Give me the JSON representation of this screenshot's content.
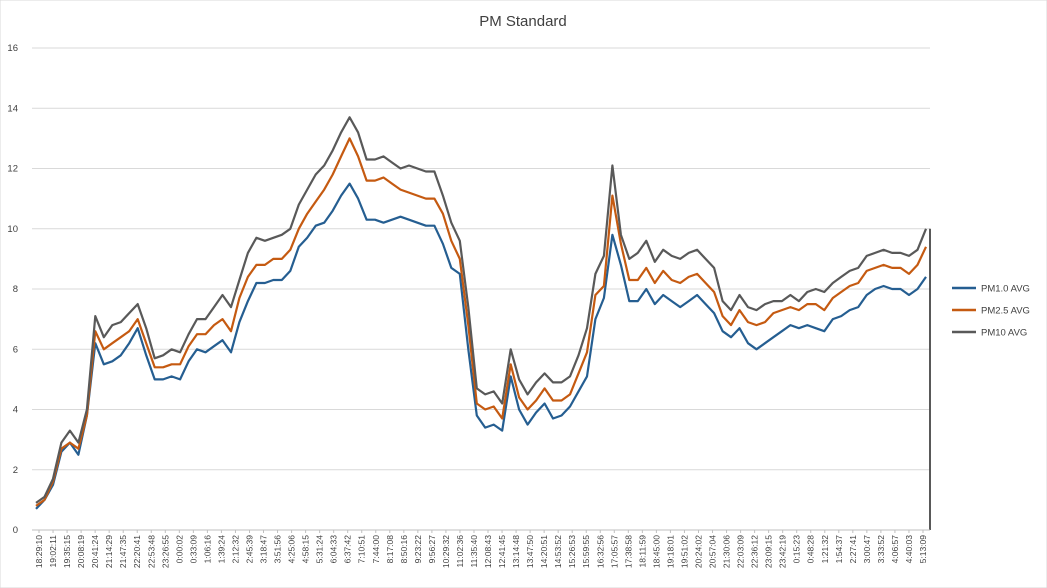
{
  "chart_data": {
    "type": "line",
    "title": "PM Standard",
    "xlabel": "",
    "ylabel": "",
    "ylim": [
      0,
      16
    ],
    "y_ticks": [
      0,
      2,
      4,
      6,
      8,
      10,
      12,
      14,
      16
    ],
    "grid": true,
    "legend_position": "right",
    "x_tick_labels": [
      "18:29:10",
      "19:02:11",
      "19:35:15",
      "20:08:19",
      "20:41:24",
      "21:14:29",
      "21:47:35",
      "22:20:41",
      "22:53:48",
      "23:26:55",
      "0:00:02",
      "0:33:09",
      "1:06:16",
      "1:39:24",
      "2:12:32",
      "2:45:39",
      "3:18:47",
      "3:51:56",
      "4:25:06",
      "4:58:15",
      "5:31:24",
      "6:04:33",
      "6:37:42",
      "7:10:51",
      "7:44:00",
      "8:17:08",
      "8:50:16",
      "9:23:22",
      "9:56:27",
      "10:29:32",
      "11:02:36",
      "11:35:40",
      "12:08:43",
      "12:41:45",
      "13:14:48",
      "13:47:50",
      "14:20:51",
      "14:53:52",
      "15:26:53",
      "15:59:55",
      "16:32:56",
      "17:05:57",
      "17:38:58",
      "18:11:59",
      "18:45:00",
      "19:18:01",
      "19:51:02",
      "20:24:02",
      "20:57:04",
      "21:30:06",
      "22:03:09",
      "22:36:12",
      "23:09:15",
      "23:42:19",
      "0:15:23",
      "0:48:28",
      "1:21:32",
      "1:54:37",
      "2:27:41",
      "3:00:47",
      "3:33:52",
      "4:06:57",
      "4:40:03",
      "5:13:09"
    ],
    "series": [
      {
        "name": "PM1.0 AVG",
        "color": "#255e91",
        "values": [
          0.7,
          1.0,
          1.5,
          2.6,
          2.9,
          2.5,
          3.8,
          6.2,
          5.5,
          5.6,
          5.8,
          6.2,
          6.7,
          5.8,
          5.0,
          5.0,
          5.1,
          5.0,
          5.6,
          6.0,
          5.9,
          6.1,
          6.3,
          5.9,
          6.9,
          7.6,
          8.2,
          8.2,
          8.3,
          8.3,
          8.6,
          9.4,
          9.7,
          10.1,
          10.2,
          10.6,
          11.1,
          11.5,
          11.0,
          10.3,
          10.3,
          10.2,
          10.3,
          10.4,
          10.3,
          10.2,
          10.1,
          10.1,
          9.5,
          8.7,
          8.5,
          6.0,
          3.8,
          3.4,
          3.5,
          3.3,
          5.1,
          4.0,
          3.5,
          3.9,
          4.2,
          3.7,
          3.8,
          4.1,
          4.6,
          5.1,
          7.0,
          7.7,
          9.8,
          8.8,
          7.6,
          7.6,
          8.0,
          7.5,
          7.8,
          7.6,
          7.4,
          7.6,
          7.8,
          7.5,
          7.2,
          6.6,
          6.4,
          6.7,
          6.2,
          6.0,
          6.2,
          6.4,
          6.6,
          6.8,
          6.7,
          6.8,
          6.7,
          6.6,
          7.0,
          7.1,
          7.3,
          7.4,
          7.8,
          8.0,
          8.1,
          8.0,
          8.0,
          7.8,
          8.0,
          8.4
        ]
      },
      {
        "name": "PM2.5 AVG",
        "color": "#c55a11",
        "values": [
          0.8,
          1.0,
          1.6,
          2.7,
          2.9,
          2.7,
          3.8,
          6.6,
          6.0,
          6.2,
          6.4,
          6.6,
          7.0,
          6.2,
          5.4,
          5.4,
          5.5,
          5.5,
          6.1,
          6.5,
          6.5,
          6.8,
          7.0,
          6.6,
          7.7,
          8.4,
          8.8,
          8.8,
          9.0,
          9.0,
          9.3,
          10.0,
          10.5,
          10.9,
          11.3,
          11.8,
          12.4,
          13.0,
          12.4,
          11.6,
          11.6,
          11.7,
          11.5,
          11.3,
          11.2,
          11.1,
          11.0,
          11.0,
          10.5,
          9.6,
          9.0,
          6.8,
          4.2,
          4.0,
          4.1,
          3.7,
          5.5,
          4.4,
          4.0,
          4.3,
          4.7,
          4.3,
          4.3,
          4.5,
          5.2,
          5.9,
          7.8,
          8.1,
          11.1,
          9.5,
          8.3,
          8.3,
          8.7,
          8.2,
          8.6,
          8.3,
          8.2,
          8.4,
          8.5,
          8.2,
          7.9,
          7.1,
          6.8,
          7.3,
          6.9,
          6.8,
          6.9,
          7.2,
          7.3,
          7.4,
          7.3,
          7.5,
          7.5,
          7.3,
          7.7,
          7.9,
          8.1,
          8.2,
          8.6,
          8.7,
          8.8,
          8.7,
          8.7,
          8.5,
          8.8,
          9.4
        ]
      },
      {
        "name": "PM10 AVG",
        "color": "#595959",
        "values": [
          0.9,
          1.1,
          1.7,
          2.9,
          3.3,
          2.9,
          4.0,
          7.1,
          6.4,
          6.8,
          6.9,
          7.2,
          7.5,
          6.7,
          5.7,
          5.8,
          6.0,
          5.9,
          6.5,
          7.0,
          7.0,
          7.4,
          7.8,
          7.4,
          8.3,
          9.2,
          9.7,
          9.6,
          9.7,
          9.8,
          10.0,
          10.8,
          11.3,
          11.8,
          12.1,
          12.6,
          13.2,
          13.7,
          13.2,
          12.3,
          12.3,
          12.4,
          12.2,
          12.0,
          12.1,
          12.0,
          11.9,
          11.9,
          11.1,
          10.2,
          9.6,
          7.4,
          4.7,
          4.5,
          4.6,
          4.2,
          6.0,
          5.0,
          4.5,
          4.9,
          5.2,
          4.9,
          4.9,
          5.1,
          5.8,
          6.7,
          8.5,
          9.1,
          12.1,
          9.8,
          9.0,
          9.2,
          9.6,
          8.9,
          9.3,
          9.1,
          9.0,
          9.2,
          9.3,
          9.0,
          8.7,
          7.6,
          7.3,
          7.8,
          7.4,
          7.3,
          7.5,
          7.6,
          7.6,
          7.8,
          7.6,
          7.9,
          8.0,
          7.9,
          8.2,
          8.4,
          8.6,
          8.7,
          9.1,
          9.2,
          9.3,
          9.2,
          9.2,
          9.1,
          9.3,
          10.0
        ]
      }
    ]
  }
}
